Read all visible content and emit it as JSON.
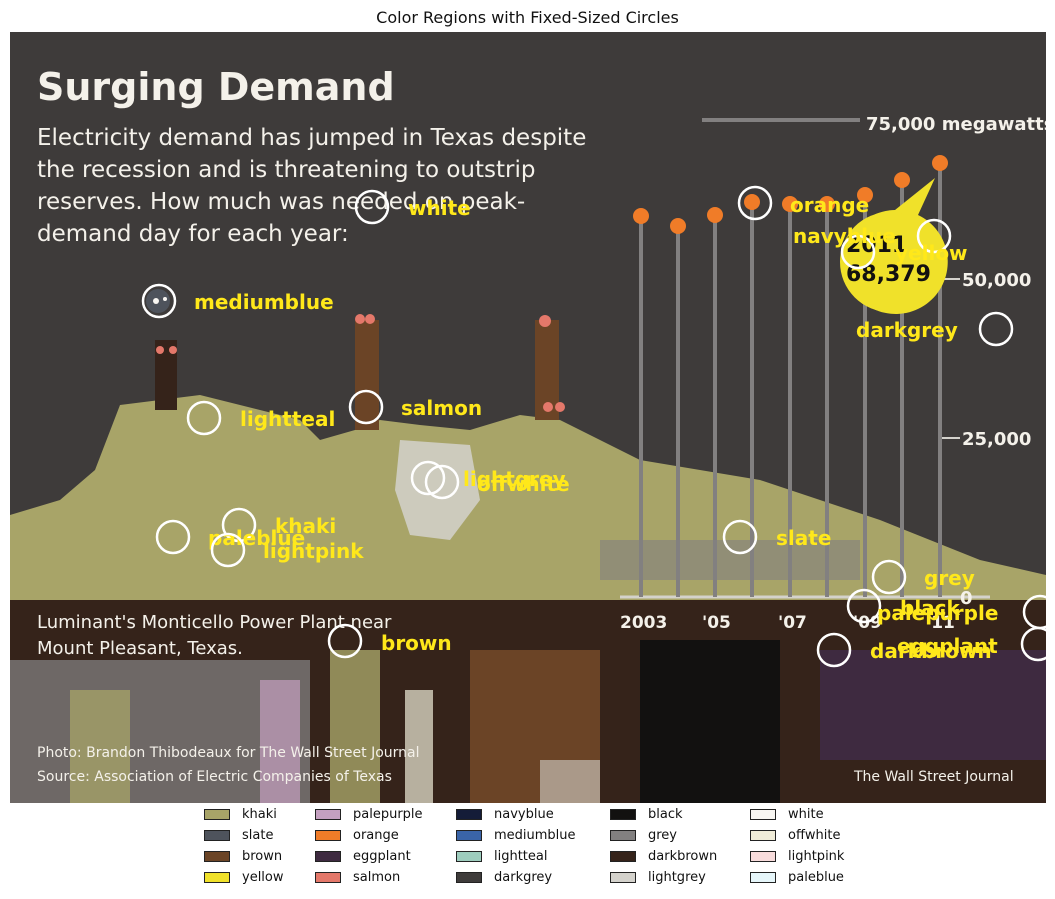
{
  "figure": {
    "title": "Color Regions with Fixed-Sized Circles"
  },
  "image_text": {
    "headline": "Surging Demand",
    "intro_lines": [
      "Electricity demand has jumped in Texas despite",
      "the recession and is threatening to outstrip",
      "reserves. How much was needed on peak-",
      "demand day for each year:"
    ],
    "top_value_label": "75,000 megawatts",
    "callout_year": "2011",
    "callout_value": "68,379",
    "axis_ticks": [
      "50,000",
      "25,000",
      "0"
    ],
    "year_ticks": [
      "2003",
      "'05",
      "'07",
      "'09",
      "'11"
    ],
    "caption_lines": [
      "Luminant's Monticello Power Plant near",
      "Mount Pleasant, Texas."
    ],
    "credit_lines": [
      "Photo: Brandon Thibodeaux for The Wall Street Journal",
      "Source: Association of Electric Companies of Texas"
    ],
    "publisher": "The Wall Street Journal"
  },
  "annotations": [
    {
      "label": "white"
    },
    {
      "label": "orange"
    },
    {
      "label": "navyblue"
    },
    {
      "label": "yellow"
    },
    {
      "label": "mediumblue"
    },
    {
      "label": "darkgrey"
    },
    {
      "label": "salmon"
    },
    {
      "label": "lightteal"
    },
    {
      "label": "lightgrey"
    },
    {
      "label": "offwhite"
    },
    {
      "label": "khaki"
    },
    {
      "label": "paleblue"
    },
    {
      "label": "lightpink"
    },
    {
      "label": "slate"
    },
    {
      "label": "grey"
    },
    {
      "label": "black"
    },
    {
      "label": "palepurple"
    },
    {
      "label": "brown"
    },
    {
      "label": "eggplant"
    },
    {
      "label": "darkbrown"
    }
  ],
  "legend": {
    "columns": [
      [
        {
          "label": "khaki",
          "color": "#a8a468"
        },
        {
          "label": "slate",
          "color": "#4e535c"
        },
        {
          "label": "brown",
          "color": "#6b4426"
        },
        {
          "label": "yellow",
          "color": "#f0e12a"
        }
      ],
      [
        {
          "label": "palepurple",
          "color": "#c4a0c0"
        },
        {
          "label": "orange",
          "color": "#f07c28"
        },
        {
          "label": "eggplant",
          "color": "#3e2a40"
        },
        {
          "label": "salmon",
          "color": "#e4786a"
        }
      ],
      [
        {
          "label": "navyblue",
          "color": "#141c38"
        },
        {
          "label": "mediumblue",
          "color": "#3a64a8"
        },
        {
          "label": "lightteal",
          "color": "#9ecdbe"
        },
        {
          "label": "darkgrey",
          "color": "#3e3b3a"
        }
      ],
      [
        {
          "label": "black",
          "color": "#121110"
        },
        {
          "label": "grey",
          "color": "#828080"
        },
        {
          "label": "darkbrown",
          "color": "#35231a"
        },
        {
          "label": "lightgrey",
          "color": "#d4d2cc"
        }
      ],
      [
        {
          "label": "white",
          "color": "#f8f6f2"
        },
        {
          "label": "offwhite",
          "color": "#f0ecd8"
        },
        {
          "label": "lightpink",
          "color": "#f8dcdc"
        },
        {
          "label": "paleblue",
          "color": "#e6f6fa"
        }
      ]
    ]
  }
}
